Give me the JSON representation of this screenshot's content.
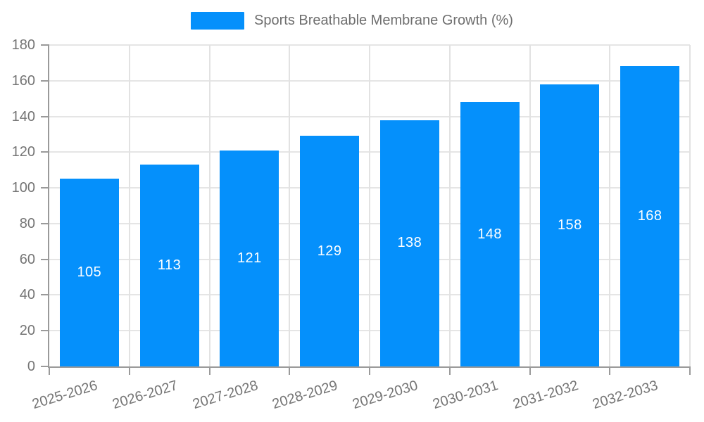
{
  "chart_data": {
    "type": "bar",
    "title": "",
    "categories": [
      "2025-2026",
      "2026-2027",
      "2027-2028",
      "2028-2029",
      "2029-2030",
      "2030-2031",
      "2031-2032",
      "2032-2033"
    ],
    "series": [
      {
        "name": "Sports Breathable Membrane Growth (%)",
        "values": [
          105,
          113,
          121,
          129,
          138,
          148,
          158,
          168
        ],
        "color": "#0590fb"
      }
    ],
    "xlabel": "",
    "ylabel": "",
    "ylim": [
      0,
      180
    ],
    "ytick_step": 20,
    "yticks": [
      0,
      20,
      40,
      60,
      80,
      100,
      120,
      140,
      160,
      180
    ],
    "grid": true,
    "legend_position": "top-center",
    "value_labels_position": "inside-center",
    "colors": {
      "bar": "#0590fb",
      "value_label_text": "#ffffff",
      "axis_line": "#9a9a9a",
      "grid_line": "#e5e5e5",
      "tick_text": "#757575",
      "legend_text": "#6e6e6e",
      "background": "#ffffff"
    }
  }
}
